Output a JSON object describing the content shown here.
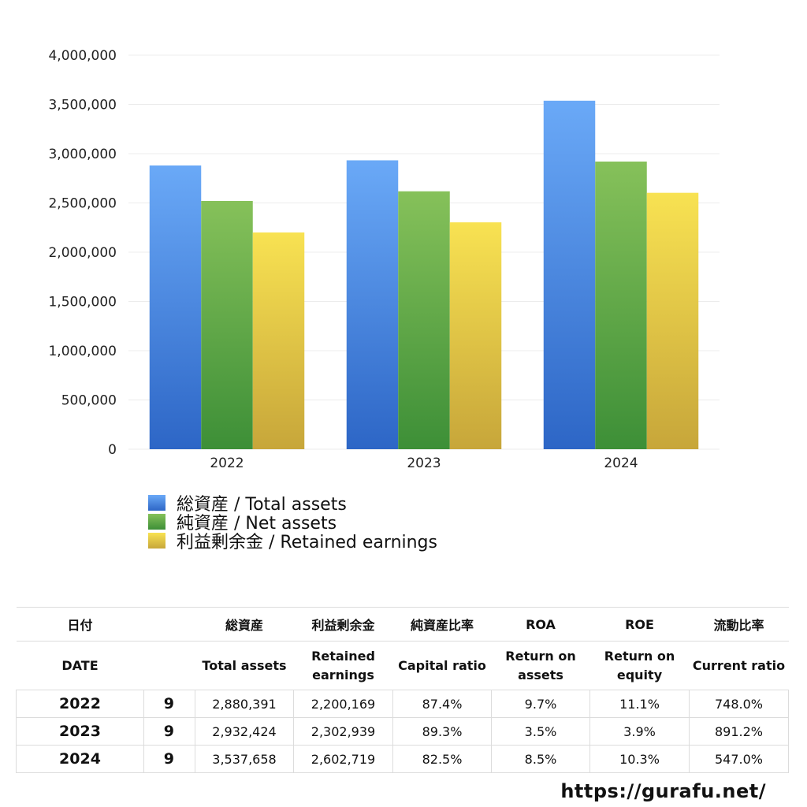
{
  "chart_data": {
    "type": "bar",
    "categories": [
      "2022",
      "2023",
      "2024"
    ],
    "series": [
      {
        "name": "総資産 / Total assets",
        "values": [
          2880391,
          2932424,
          3537658
        ],
        "color_top": "#6aa9f7",
        "color_bottom": "#2d66c6"
      },
      {
        "name": "純資産 / Net assets",
        "values": [
          2520000,
          2618000,
          2920000
        ],
        "color_top": "#86c15a",
        "color_bottom": "#3d8f37"
      },
      {
        "name": "利益剰余金 / Retained earnings",
        "values": [
          2200169,
          2302939,
          2602719
        ],
        "color_top": "#f8e252",
        "color_bottom": "#c7a63a"
      }
    ],
    "ylim": [
      0,
      4000000
    ],
    "yticks": [
      "0",
      "500,000",
      "1,000,000",
      "1,500,000",
      "2,000,000",
      "2,500,000",
      "3,000,000",
      "3,500,000",
      "4,000,000"
    ],
    "grid": true,
    "legend_position": "bottom-left"
  },
  "table": {
    "header_jp": [
      "日付",
      "",
      "総資産",
      "利益剰余金",
      "純資産比率",
      "ROA",
      "ROE",
      "流動比率"
    ],
    "header_en": [
      "DATE",
      "",
      "Total assets",
      "Retained earnings",
      "Capital ratio",
      "Return on assets",
      "Return on equity",
      "Current ratio"
    ],
    "rows": [
      [
        "2022",
        "9",
        "2,880,391",
        "2,200,169",
        "87.4%",
        "9.7%",
        "11.1%",
        "748.0%"
      ],
      [
        "2023",
        "9",
        "2,932,424",
        "2,302,939",
        "89.3%",
        "3.5%",
        "3.9%",
        "891.2%"
      ],
      [
        "2024",
        "9",
        "3,537,658",
        "2,602,719",
        "82.5%",
        "8.5%",
        "10.3%",
        "547.0%"
      ]
    ]
  },
  "footer": {
    "url": "https://gurafu.net/"
  }
}
